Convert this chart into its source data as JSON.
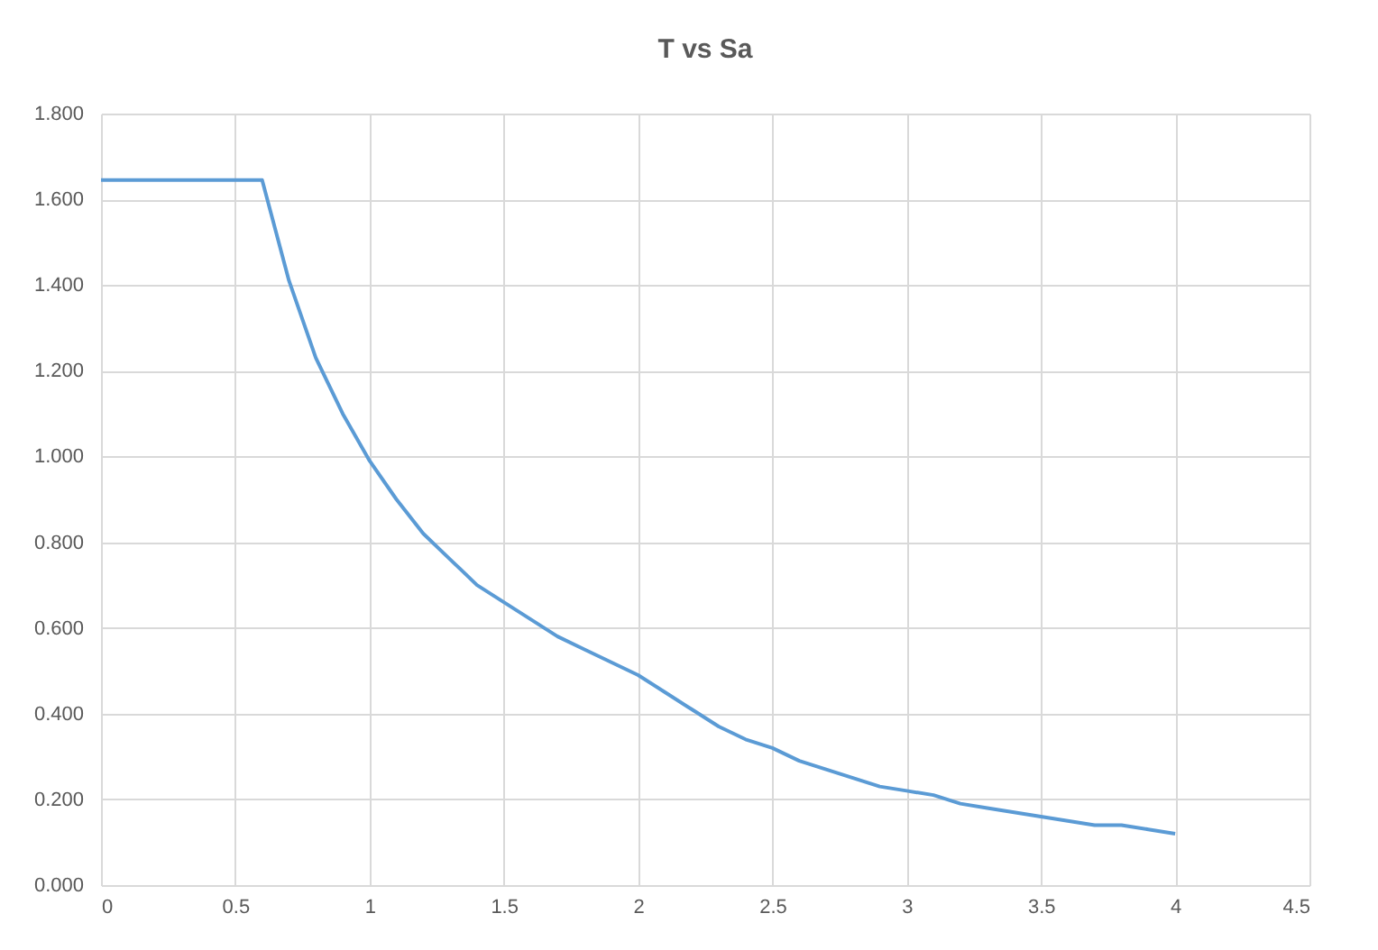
{
  "chart_data": {
    "type": "line",
    "title": "T vs Sa",
    "x": [
      0,
      0.1,
      0.2,
      0.3,
      0.4,
      0.5,
      0.6,
      0.7,
      0.8,
      0.9,
      1.0,
      1.1,
      1.2,
      1.3,
      1.4,
      1.5,
      1.6,
      1.7,
      1.8,
      1.9,
      2.0,
      2.1,
      2.2,
      2.3,
      2.4,
      2.5,
      2.6,
      2.7,
      2.8,
      2.9,
      3.0,
      3.1,
      3.2,
      3.3,
      3.4,
      3.5,
      3.6,
      3.7,
      3.8,
      3.9,
      4.0
    ],
    "series": [
      {
        "color": "#5b9bd5",
        "values": [
          1.645,
          1.645,
          1.645,
          1.645,
          1.645,
          1.645,
          1.645,
          1.41,
          1.23,
          1.1,
          0.99,
          0.9,
          0.82,
          0.76,
          0.7,
          0.66,
          0.62,
          0.58,
          0.55,
          0.52,
          0.49,
          0.45,
          0.41,
          0.37,
          0.34,
          0.32,
          0.29,
          0.27,
          0.25,
          0.23,
          0.22,
          0.21,
          0.19,
          0.18,
          0.17,
          0.16,
          0.15,
          0.14,
          0.14,
          0.13,
          0.12
        ]
      }
    ],
    "xlim": [
      0,
      4.5
    ],
    "xticks": [
      0,
      0.5,
      1,
      1.5,
      2,
      2.5,
      3,
      3.5,
      4,
      4.5
    ],
    "ylim": [
      0,
      1.8
    ],
    "yticks": [
      {
        "value": 0,
        "label": "0.000"
      },
      {
        "value": 0.2,
        "label": "0.200"
      },
      {
        "value": 0.4,
        "label": "0.400"
      },
      {
        "value": 0.6,
        "label": "0.600"
      },
      {
        "value": 0.8,
        "label": "0.800"
      },
      {
        "value": 1.0,
        "label": "1.000"
      },
      {
        "value": 1.2,
        "label": "1.200"
      },
      {
        "value": 1.4,
        "label": "1.400"
      },
      {
        "value": 1.6,
        "label": "1.600"
      },
      {
        "value": 1.8,
        "label": "1.800"
      }
    ],
    "grid": true,
    "marker": "none",
    "line_style": "solid"
  }
}
